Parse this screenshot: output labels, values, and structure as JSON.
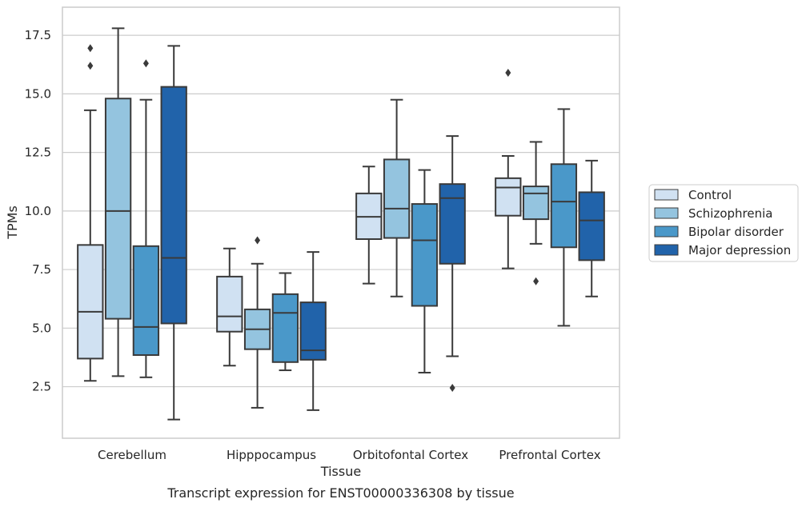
{
  "chart_data": {
    "type": "box",
    "title": "",
    "caption": "Transcript expression for ENST00000336308 by tissue",
    "xlabel": "Tissue",
    "ylabel": "TPMs",
    "ylim": [
      0.3,
      18.7
    ],
    "yticks": [
      "2.5",
      "5.0",
      "7.5",
      "10.0",
      "12.5",
      "15.0",
      "17.5"
    ],
    "grid": "horizontal",
    "legend_position": "right",
    "categories": [
      "Cerebellum",
      "Hipppocampus",
      "Orbitofontal Cortex",
      "Prefrontal Cortex"
    ],
    "series": [
      {
        "name": "Control",
        "color": "#d0e1f2",
        "boxes": [
          {
            "whisker_low": 2.75,
            "q1": 3.7,
            "median": 5.7,
            "q3": 8.55,
            "whisker_high": 14.3,
            "outliers": [
              16.2,
              16.95
            ]
          },
          {
            "whisker_low": 3.4,
            "q1": 4.85,
            "median": 5.5,
            "q3": 7.2,
            "whisker_high": 8.4,
            "outliers": []
          },
          {
            "whisker_low": 6.9,
            "q1": 8.8,
            "median": 9.75,
            "q3": 10.75,
            "whisker_high": 11.9,
            "outliers": []
          },
          {
            "whisker_low": 7.55,
            "q1": 9.8,
            "median": 11.0,
            "q3": 11.4,
            "whisker_high": 12.35,
            "outliers": [
              15.9
            ]
          }
        ]
      },
      {
        "name": "Schizophrenia",
        "color": "#94c4df",
        "boxes": [
          {
            "whisker_low": 2.95,
            "q1": 5.4,
            "median": 10.0,
            "q3": 14.8,
            "whisker_high": 17.8,
            "outliers": []
          },
          {
            "whisker_low": 1.6,
            "q1": 4.1,
            "median": 4.95,
            "q3": 5.8,
            "whisker_high": 7.75,
            "outliers": [
              8.75
            ]
          },
          {
            "whisker_low": 6.35,
            "q1": 8.85,
            "median": 10.1,
            "q3": 12.2,
            "whisker_high": 14.75,
            "outliers": []
          },
          {
            "whisker_low": 8.6,
            "q1": 9.65,
            "median": 10.75,
            "q3": 11.05,
            "whisker_high": 12.95,
            "outliers": [
              7.0
            ]
          }
        ]
      },
      {
        "name": "Bipolar disorder",
        "color": "#4a98c9",
        "boxes": [
          {
            "whisker_low": 2.9,
            "q1": 3.85,
            "median": 5.05,
            "q3": 8.5,
            "whisker_high": 14.75,
            "outliers": [
              16.3
            ]
          },
          {
            "whisker_low": 3.2,
            "q1": 3.55,
            "median": 5.65,
            "q3": 6.45,
            "whisker_high": 7.35,
            "outliers": []
          },
          {
            "whisker_low": 3.1,
            "q1": 5.95,
            "median": 8.75,
            "q3": 10.3,
            "whisker_high": 11.75,
            "outliers": []
          },
          {
            "whisker_low": 5.1,
            "q1": 8.45,
            "median": 10.4,
            "q3": 12.0,
            "whisker_high": 14.35,
            "outliers": []
          }
        ]
      },
      {
        "name": "Major depression",
        "color": "#2163aa",
        "boxes": [
          {
            "whisker_low": 1.1,
            "q1": 5.2,
            "median": 8.0,
            "q3": 15.3,
            "whisker_high": 17.05,
            "outliers": []
          },
          {
            "whisker_low": 1.5,
            "q1": 3.65,
            "median": 4.05,
            "q3": 6.1,
            "whisker_high": 8.25,
            "outliers": []
          },
          {
            "whisker_low": 3.8,
            "q1": 7.75,
            "median": 10.55,
            "q3": 11.15,
            "whisker_high": 13.2,
            "outliers": [
              2.45
            ]
          },
          {
            "whisker_low": 6.35,
            "q1": 7.9,
            "median": 9.6,
            "q3": 10.8,
            "whisker_high": 12.15,
            "outliers": []
          }
        ]
      }
    ]
  }
}
